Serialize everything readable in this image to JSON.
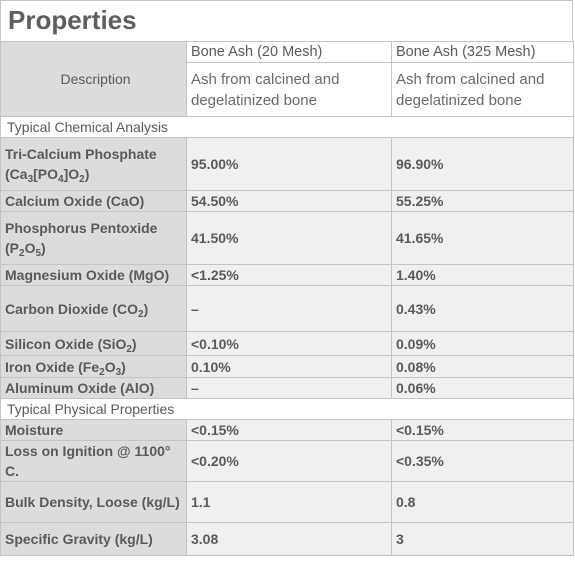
{
  "title": "Properties",
  "columns": [
    "Bone Ash (20 Mesh)",
    "Bone Ash (325 Mesh)"
  ],
  "description": {
    "label": "Description",
    "values": [
      "Ash from calcined and degelatinized bone",
      "Ash from calcined and degelatinized bone"
    ]
  },
  "sections": [
    {
      "title": "Typical Chemical Analysis",
      "rows": [
        {
          "label_parts": [
            "Tri-Calcium Phosphate (Ca",
            "3",
            "[PO",
            "4",
            "]O",
            "2",
            ")"
          ],
          "v1": "95.00%",
          "v2": "96.90%"
        },
        {
          "label_parts": [
            "Calcium Oxide (CaO)"
          ],
          "v1": "54.50%",
          "v2": "55.25%"
        },
        {
          "label_parts": [
            "Phosphorus Pentoxide (P",
            "2",
            "O",
            "5",
            ")"
          ],
          "v1": "41.50%",
          "v2": "41.65%"
        },
        {
          "label_parts": [
            "Magnesium Oxide (MgO)"
          ],
          "v1": "<1.25%",
          "v2": "1.40%"
        },
        {
          "label_parts": [
            "Carbon Dioxide (CO",
            "2",
            ")"
          ],
          "v1": "–",
          "v2": "0.43%"
        },
        {
          "label_parts": [
            "Silicon Oxide (SiO",
            "2",
            ")"
          ],
          "v1": "<0.10%",
          "v2": "0.09%"
        },
        {
          "label_parts": [
            "Iron Oxide (Fe",
            "2",
            "O",
            "3",
            ")"
          ],
          "v1": "0.10%",
          "v2": "0.08%"
        },
        {
          "label_parts": [
            "Aluminum Oxide (AlO)"
          ],
          "v1": "–",
          "v2": "0.06%"
        }
      ]
    },
    {
      "title": "Typical Physical Properties",
      "rows": [
        {
          "label_parts": [
            "Moisture"
          ],
          "v1": "<0.15%",
          "v2": "<0.15%"
        },
        {
          "label_parts": [
            "Loss on Ignition @ 1100° C."
          ],
          "v1": "<0.20%",
          "v2": "<0.35%"
        },
        {
          "label_parts": [
            "Bulk Density, Loose (kg/L)"
          ],
          "v1": "1.1",
          "v2": "0.8"
        },
        {
          "label_parts": [
            "Specific Gravity (kg/L)"
          ],
          "v1": "3.08",
          "v2": "3"
        }
      ]
    }
  ]
}
